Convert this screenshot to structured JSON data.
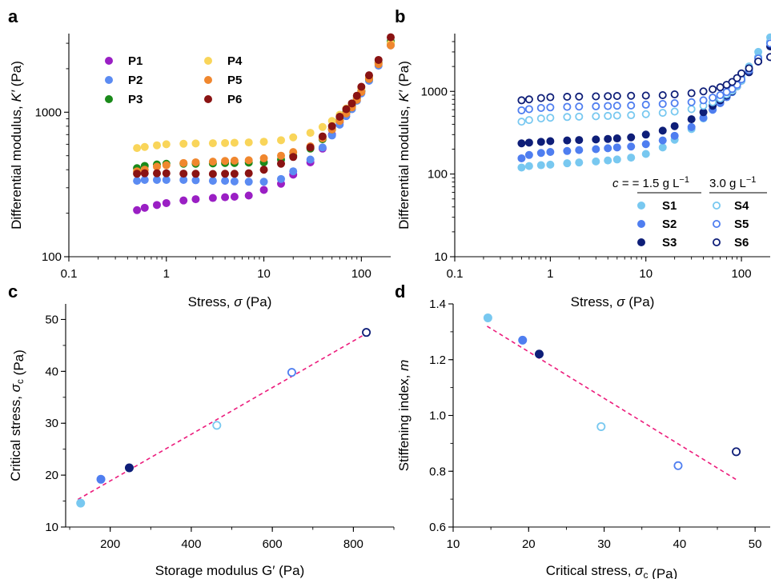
{
  "chart_data": [
    {
      "panel": "a",
      "type": "scatter",
      "title": "",
      "xlabel": "Stress, σ (Pa)",
      "ylabel": "Differential modulus, K′ (Pa)",
      "xscale": "log",
      "yscale": "log",
      "xlim": [
        0.1,
        200
      ],
      "ylim": [
        100,
        3500
      ],
      "xticks": [
        {
          "v": 0.1,
          "label": "0.1"
        },
        {
          "v": 1,
          "label": "1"
        },
        {
          "v": 10,
          "label": "10"
        },
        {
          "v": 100,
          "label": "100"
        }
      ],
      "yticks": [
        {
          "v": 100,
          "label": "100"
        },
        {
          "v": 1000,
          "label": "1000"
        }
      ],
      "grid": false,
      "legend": {
        "placement": "top-left",
        "columns": 2
      },
      "series": [
        {
          "name": "P1",
          "color": "#9a1fc4",
          "marker": "filled",
          "x": [
            0.5,
            0.6,
            0.8,
            1,
            1.5,
            2,
            3,
            4,
            5,
            7,
            10,
            15,
            20,
            30,
            40,
            50,
            60,
            70,
            80,
            90,
            100,
            120,
            150,
            200
          ],
          "y": [
            210,
            218,
            228,
            235,
            245,
            250,
            255,
            258,
            260,
            265,
            290,
            320,
            370,
            450,
            560,
            700,
            850,
            980,
            1100,
            1250,
            1400,
            1700,
            2200,
            3000
          ]
        },
        {
          "name": "P2",
          "color": "#5b8bf2",
          "marker": "filled",
          "x": [
            0.5,
            0.6,
            0.8,
            1,
            1.5,
            2,
            3,
            4,
            5,
            7,
            10,
            15,
            20,
            30,
            40,
            50,
            60,
            70,
            80,
            90,
            100,
            120,
            150,
            200
          ],
          "y": [
            335,
            340,
            340,
            340,
            340,
            338,
            335,
            335,
            332,
            330,
            330,
            345,
            390,
            470,
            570,
            690,
            820,
            940,
            1050,
            1200,
            1350,
            1650,
            2100,
            2900
          ]
        },
        {
          "name": "P3",
          "color": "#1a8a1a",
          "marker": "filled",
          "x": [
            0.5,
            0.6,
            0.8,
            1,
            1.5,
            2,
            3,
            4,
            5,
            7,
            10,
            15,
            20,
            30,
            40,
            50,
            60,
            70,
            80,
            90,
            100,
            120,
            150,
            200
          ],
          "y": [
            410,
            425,
            435,
            440,
            440,
            440,
            442,
            445,
            445,
            448,
            450,
            470,
            500,
            560,
            650,
            760,
            880,
            1000,
            1100,
            1250,
            1400,
            1700,
            2200,
            3100
          ]
        },
        {
          "name": "P4",
          "color": "#f9d55a",
          "marker": "filled",
          "x": [
            0.5,
            0.6,
            0.8,
            1,
            1.5,
            2,
            3,
            4,
            5,
            7,
            10,
            15,
            20,
            30,
            40,
            50,
            60,
            70,
            80,
            90,
            100,
            120,
            150,
            200
          ],
          "y": [
            565,
            575,
            590,
            600,
            605,
            608,
            610,
            612,
            615,
            618,
            625,
            640,
            670,
            720,
            790,
            870,
            960,
            1060,
            1150,
            1280,
            1450,
            1750,
            2200,
            3000
          ]
        },
        {
          "name": "P5",
          "color": "#f0872e",
          "marker": "filled",
          "x": [
            0.5,
            0.6,
            0.8,
            1,
            1.5,
            2,
            3,
            4,
            5,
            7,
            10,
            15,
            20,
            30,
            40,
            50,
            60,
            70,
            80,
            90,
            100,
            120,
            150,
            200
          ],
          "y": [
            390,
            400,
            420,
            430,
            445,
            450,
            455,
            460,
            462,
            465,
            480,
            500,
            530,
            580,
            660,
            760,
            870,
            980,
            1080,
            1220,
            1380,
            1700,
            2150,
            2900
          ]
        },
        {
          "name": "P6",
          "color": "#8a1313",
          "marker": "filled",
          "x": [
            0.5,
            0.6,
            0.8,
            1,
            1.5,
            2,
            3,
            4,
            5,
            7,
            10,
            15,
            20,
            30,
            40,
            50,
            60,
            70,
            80,
            90,
            100,
            120,
            150,
            200
          ],
          "y": [
            375,
            378,
            378,
            378,
            376,
            375,
            374,
            375,
            375,
            378,
            400,
            440,
            490,
            570,
            680,
            800,
            930,
            1050,
            1150,
            1300,
            1500,
            1800,
            2300,
            3300
          ]
        }
      ]
    },
    {
      "panel": "b",
      "type": "scatter",
      "title": "",
      "xlabel": "Stress, σ (Pa)",
      "ylabel": "Differential modulus, K′ (Pa)",
      "xscale": "log",
      "yscale": "log",
      "xlim": [
        0.1,
        200
      ],
      "ylim": [
        10,
        5000
      ],
      "xticks": [
        {
          "v": 0.1,
          "label": "0.1"
        },
        {
          "v": 1,
          "label": "1"
        },
        {
          "v": 10,
          "label": "10"
        },
        {
          "v": 100,
          "label": "100"
        }
      ],
      "yticks": [
        {
          "v": 10,
          "label": "10"
        },
        {
          "v": 100,
          "label": "100"
        },
        {
          "v": 1000,
          "label": "1000"
        }
      ],
      "grid": false,
      "legend": {
        "placement": "bottom-right",
        "columns": 2,
        "headers": [
          {
            "prefix": "c = ",
            "value": "1.5 g L",
            "sup": "−1"
          },
          {
            "prefix": "",
            "value": "3.0  g L",
            "sup": "−1"
          }
        ]
      },
      "series": [
        {
          "name": "S1",
          "color": "#78c8f0",
          "marker": "filled",
          "x": [
            0.5,
            0.6,
            0.8,
            1,
            1.5,
            2,
            3,
            4,
            5,
            7,
            10,
            15,
            20,
            30,
            40,
            50,
            60,
            70,
            80,
            90,
            100,
            120,
            150,
            200
          ],
          "y": [
            120,
            125,
            128,
            130,
            135,
            138,
            142,
            146,
            150,
            158,
            175,
            210,
            260,
            350,
            470,
            600,
            750,
            900,
            1050,
            1250,
            1500,
            2000,
            3000,
            4500
          ]
        },
        {
          "name": "S2",
          "color": "#4f7ef0",
          "marker": "filled",
          "x": [
            0.5,
            0.6,
            0.8,
            1,
            1.5,
            2,
            3,
            4,
            5,
            7,
            10,
            15,
            20,
            30,
            40,
            50,
            60,
            70,
            80,
            90,
            100,
            120,
            150,
            200
          ],
          "y": [
            155,
            170,
            180,
            185,
            190,
            195,
            200,
            205,
            210,
            215,
            230,
            255,
            290,
            370,
            480,
            600,
            720,
            850,
            980,
            1150,
            1350,
            1800,
            2600,
            4000
          ]
        },
        {
          "name": "S3",
          "color": "#0e1e78",
          "marker": "filled",
          "x": [
            0.5,
            0.6,
            0.8,
            1,
            1.5,
            2,
            3,
            4,
            5,
            7,
            10,
            15,
            20,
            30,
            40,
            50,
            60,
            70,
            80,
            90,
            100,
            120,
            150,
            200
          ],
          "y": [
            235,
            240,
            245,
            250,
            255,
            258,
            262,
            266,
            270,
            278,
            300,
            335,
            380,
            460,
            560,
            670,
            780,
            890,
            1000,
            1150,
            1350,
            1700,
            2300,
            3500
          ]
        },
        {
          "name": "S4",
          "color": "#78c8f0",
          "marker": "open",
          "x": [
            0.5,
            0.6,
            0.8,
            1,
            1.5,
            2,
            3,
            4,
            5,
            7,
            10,
            15,
            20,
            30,
            40,
            50,
            60,
            70,
            80,
            90,
            100,
            120,
            150,
            200
          ],
          "y": [
            430,
            450,
            470,
            480,
            490,
            495,
            500,
            505,
            510,
            515,
            530,
            550,
            570,
            610,
            670,
            740,
            820,
            920,
            1020,
            1150,
            1350,
            1800,
            2600,
            4000
          ]
        },
        {
          "name": "S5",
          "color": "#4f7ef0",
          "marker": "open",
          "x": [
            0.5,
            0.6,
            0.8,
            1,
            1.5,
            2,
            3,
            4,
            5,
            7,
            10,
            15,
            20,
            30,
            40,
            50,
            60,
            70,
            80,
            90,
            100,
            120,
            150,
            200
          ],
          "y": [
            590,
            610,
            630,
            640,
            650,
            655,
            660,
            665,
            670,
            675,
            690,
            705,
            720,
            740,
            780,
            840,
            900,
            980,
            1070,
            1200,
            1400,
            1800,
            2500,
            3800
          ]
        },
        {
          "name": "S6",
          "color": "#0e1e78",
          "marker": "open",
          "x": [
            0.5,
            0.6,
            0.8,
            1,
            1.5,
            2,
            3,
            4,
            5,
            7,
            10,
            15,
            20,
            30,
            40,
            50,
            60,
            70,
            80,
            90,
            100,
            120,
            150,
            200
          ],
          "y": [
            780,
            800,
            830,
            850,
            860,
            865,
            870,
            875,
            880,
            885,
            890,
            900,
            920,
            950,
            1000,
            1060,
            1120,
            1200,
            1300,
            1450,
            1650,
            1900,
            2300,
            2600
          ]
        }
      ]
    },
    {
      "panel": "c",
      "type": "scatter",
      "title": "",
      "xlabel": "Storage modulus G′ (Pa)",
      "ylabel": "Critical stress, σc (Pa)",
      "xscale": "linear",
      "yscale": "linear",
      "xlim": [
        90,
        900
      ],
      "ylim": [
        10,
        53
      ],
      "xticks": [
        200,
        400,
        600,
        800
      ],
      "yticks": [
        10,
        20,
        30,
        40,
        50
      ],
      "grid": false,
      "points": [
        {
          "name": "S1",
          "x": 127,
          "y": 14.6,
          "color": "#78c8f0",
          "marker": "filled"
        },
        {
          "name": "S2",
          "x": 177,
          "y": 19.2,
          "color": "#4f7ef0",
          "marker": "filled"
        },
        {
          "name": "S3",
          "x": 247,
          "y": 21.4,
          "color": "#0e1e78",
          "marker": "filled"
        },
        {
          "name": "S4",
          "x": 463,
          "y": 29.6,
          "color": "#78c8f0",
          "marker": "open"
        },
        {
          "name": "S5",
          "x": 648,
          "y": 39.8,
          "color": "#4f7ef0",
          "marker": "open"
        },
        {
          "name": "S6",
          "x": 832,
          "y": 47.5,
          "color": "#0e1e78",
          "marker": "open"
        }
      ],
      "fit_line": {
        "x": [
          120,
          830
        ],
        "y": [
          15.3,
          47.2
        ],
        "color": "#ec1c7c",
        "style": "dashed"
      }
    },
    {
      "panel": "d",
      "type": "scatter",
      "title": "",
      "xlabel": "Critical stress, σc (Pa)",
      "ylabel": "Stiffening index, m",
      "xscale": "linear",
      "yscale": "linear",
      "xlim": [
        10,
        52
      ],
      "ylim": [
        0.6,
        1.4
      ],
      "xticks": [
        10,
        20,
        30,
        40,
        50
      ],
      "yticks": [
        {
          "v": 0.6,
          "label": "0.6"
        },
        {
          "v": 0.8,
          "label": "0.8"
        },
        {
          "v": 1.0,
          "label": "1.0"
        },
        {
          "v": 1.2,
          "label": "1.2"
        },
        {
          "v": 1.4,
          "label": "1.4"
        }
      ],
      "grid": false,
      "points": [
        {
          "name": "S1",
          "x": 14.6,
          "y": 1.35,
          "color": "#78c8f0",
          "marker": "filled"
        },
        {
          "name": "S2",
          "x": 19.2,
          "y": 1.27,
          "color": "#4f7ef0",
          "marker": "filled"
        },
        {
          "name": "S3",
          "x": 21.4,
          "y": 1.22,
          "color": "#0e1e78",
          "marker": "filled"
        },
        {
          "name": "S4",
          "x": 29.6,
          "y": 0.96,
          "color": "#78c8f0",
          "marker": "open"
        },
        {
          "name": "S5",
          "x": 39.8,
          "y": 0.82,
          "color": "#4f7ef0",
          "marker": "open"
        },
        {
          "name": "S6",
          "x": 47.5,
          "y": 0.87,
          "color": "#0e1e78",
          "marker": "open"
        }
      ],
      "fit_line": {
        "x": [
          14.5,
          47.5
        ],
        "y": [
          1.32,
          0.77
        ],
        "color": "#ec1c7c",
        "style": "dashed"
      }
    }
  ]
}
